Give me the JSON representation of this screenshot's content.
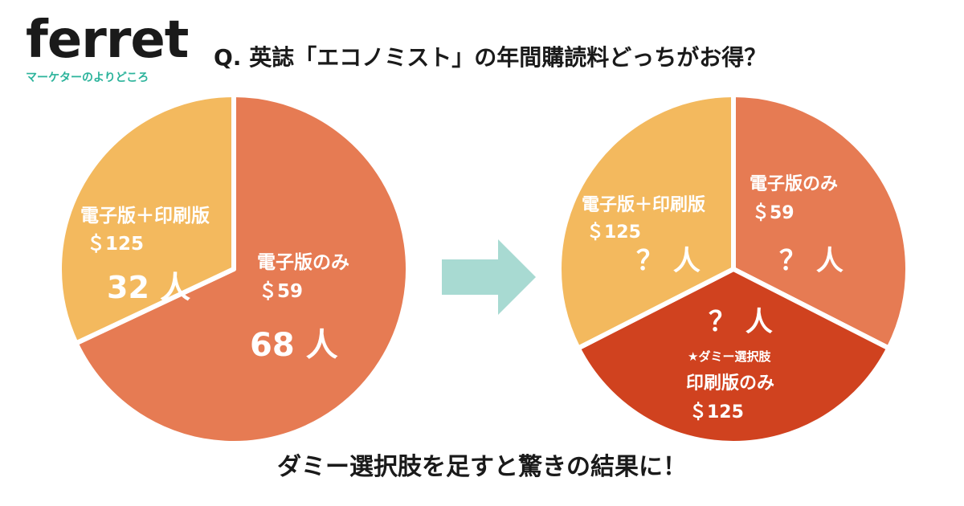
{
  "logo": {
    "word": "ferret",
    "tagline": "マーケターのよりどころ"
  },
  "question": "Q. 英誌「エコノミスト」の年間購読料どっちがお得？",
  "footer": "ダミー選択肢を足すと驚きの結果に！",
  "colors": {
    "light_orange": "#f3b95e",
    "orange": "#e67b53",
    "dark_red": "#d0421f",
    "arrow": "#a8dad2",
    "logo_accent": "#2bb39b"
  },
  "chart_data": [
    {
      "type": "pie",
      "slices": [
        {
          "name": "電子版のみ",
          "price": "＄59",
          "count_label": "68 人",
          "value": 68,
          "color": "#e67b53"
        },
        {
          "name": "電子版＋印刷版",
          "price": "＄125",
          "count_label": "32 人",
          "value": 32,
          "color": "#f3b95e"
        }
      ]
    },
    {
      "type": "pie",
      "slices": [
        {
          "name": "電子版のみ",
          "price": "＄59",
          "count_label": "？ 人",
          "color": "#e67b53"
        },
        {
          "name": "印刷版のみ",
          "tag": "★ダミー選択肢",
          "price": "＄125",
          "count_label": "？ 人",
          "color": "#d0421f"
        },
        {
          "name": "電子版＋印刷版",
          "price": "＄125",
          "count_label": "？ 人",
          "color": "#f3b95e"
        }
      ]
    }
  ]
}
